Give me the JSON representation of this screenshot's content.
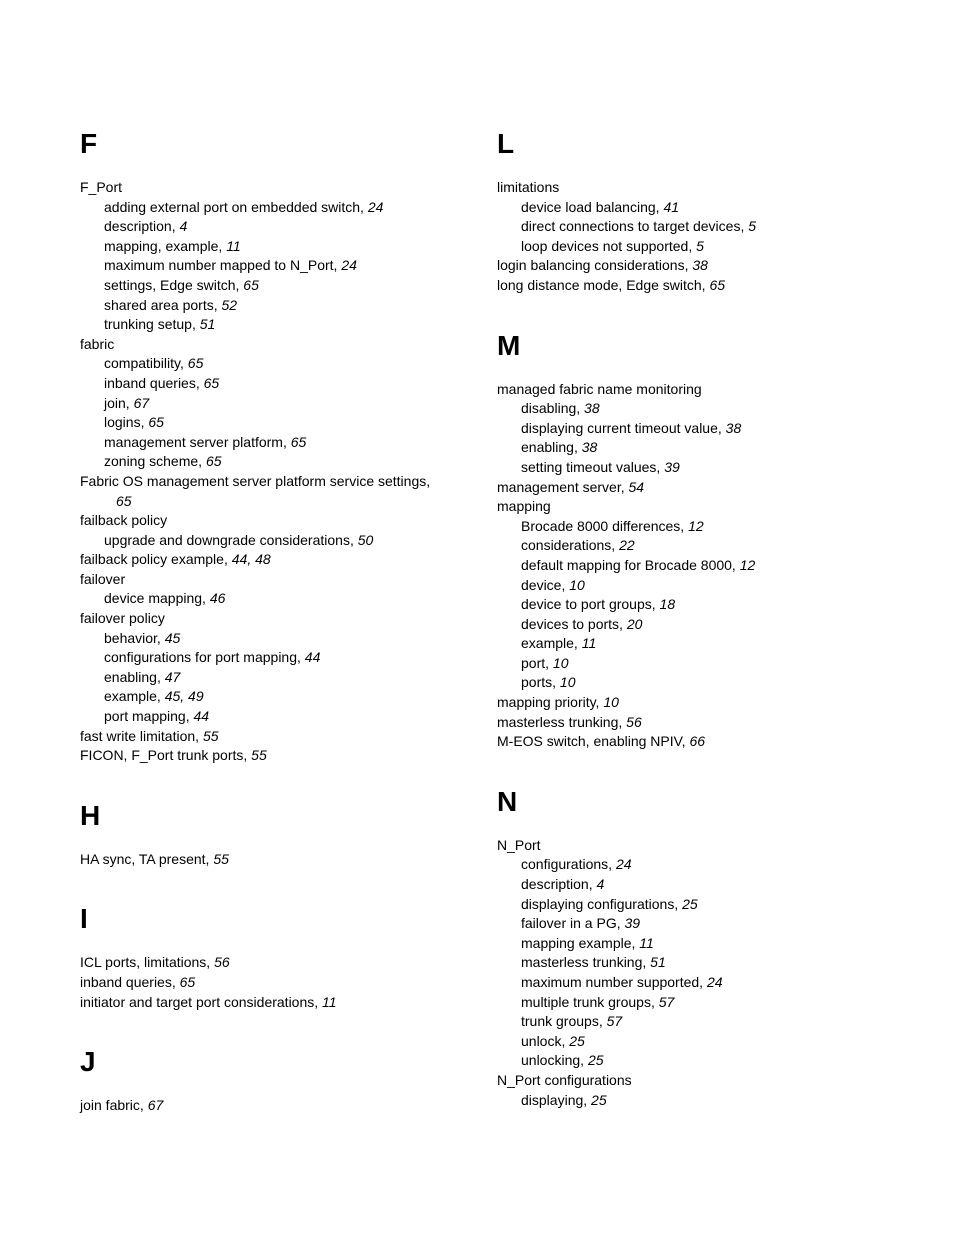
{
  "left": {
    "F": {
      "letter": "F",
      "entries": [
        {
          "text": "F_Port",
          "page": "",
          "sub": [
            {
              "text": "adding external port on embedded switch",
              "page": "24"
            },
            {
              "text": "description",
              "page": "4"
            },
            {
              "text": "mapping, example",
              "page": "11"
            },
            {
              "text": "maximum number mapped to N_Port",
              "page": "24"
            },
            {
              "text": "settings, Edge switch",
              "page": "65"
            },
            {
              "text": "shared area ports",
              "page": "52"
            },
            {
              "text": "trunking setup",
              "page": "51"
            }
          ]
        },
        {
          "text": "fabric",
          "page": "",
          "sub": [
            {
              "text": "compatibility",
              "page": "65"
            },
            {
              "text": "inband queries",
              "page": "65"
            },
            {
              "text": "join",
              "page": "67"
            },
            {
              "text": "logins",
              "page": "65"
            },
            {
              "text": "management server platform",
              "page": "65"
            },
            {
              "text": "zoning scheme",
              "page": "65"
            }
          ]
        },
        {
          "text": "Fabric OS management server platform service settings",
          "page": "65",
          "cont": true
        },
        {
          "text": "failback policy",
          "page": "",
          "sub": [
            {
              "text": "upgrade and downgrade considerations",
              "page": "50"
            }
          ]
        },
        {
          "text": "failback policy example",
          "page": "44, 48"
        },
        {
          "text": "failover",
          "page": "",
          "sub": [
            {
              "text": "device mapping",
              "page": "46"
            }
          ]
        },
        {
          "text": "failover policy",
          "page": "",
          "sub": [
            {
              "text": "behavior",
              "page": "45"
            },
            {
              "text": "configurations for port mapping",
              "page": "44"
            },
            {
              "text": "enabling",
              "page": "47"
            },
            {
              "text": "example",
              "page": "45, 49"
            },
            {
              "text": "port mapping",
              "page": "44"
            }
          ]
        },
        {
          "text": "fast write limitation",
          "page": "55"
        },
        {
          "text": "FICON, F_Port trunk ports",
          "page": "55"
        }
      ]
    },
    "H": {
      "letter": "H",
      "entries": [
        {
          "text": "HA sync, TA present",
          "page": "55"
        }
      ]
    },
    "I": {
      "letter": "I",
      "entries": [
        {
          "text": "ICL ports, limitations",
          "page": "56"
        },
        {
          "text": "inband queries",
          "page": "65"
        },
        {
          "text": "initiator and target port considerations",
          "page": "11"
        }
      ]
    },
    "J": {
      "letter": "J",
      "entries": [
        {
          "text": "join fabric",
          "page": "67"
        }
      ]
    }
  },
  "right": {
    "L": {
      "letter": "L",
      "entries": [
        {
          "text": "limitations",
          "page": "",
          "sub": [
            {
              "text": "device load balancing",
              "page": "41"
            },
            {
              "text": "direct connections to target devices",
              "page": "5"
            },
            {
              "text": "loop devices not supported",
              "page": "5"
            }
          ]
        },
        {
          "text": "login balancing considerations",
          "page": "38"
        },
        {
          "text": "long distance mode, Edge switch",
          "page": "65"
        }
      ]
    },
    "M": {
      "letter": "M",
      "entries": [
        {
          "text": "managed fabric name monitoring",
          "page": "",
          "sub": [
            {
              "text": "disabling",
              "page": "38"
            },
            {
              "text": "displaying current timeout value",
              "page": "38"
            },
            {
              "text": "enabling",
              "page": "38"
            },
            {
              "text": "setting timeout values",
              "page": "39"
            }
          ]
        },
        {
          "text": "management server",
          "page": "54"
        },
        {
          "text": "mapping",
          "page": "",
          "sub": [
            {
              "text": "Brocade 8000 differences",
              "page": "12"
            },
            {
              "text": "considerations",
              "page": "22"
            },
            {
              "text": "default mapping for Brocade 8000",
              "page": "12"
            },
            {
              "text": "device",
              "page": "10"
            },
            {
              "text": "device to port groups",
              "page": "18"
            },
            {
              "text": "devices to ports",
              "page": "20"
            },
            {
              "text": "example",
              "page": "11"
            },
            {
              "text": "port",
              "page": "10"
            },
            {
              "text": "ports",
              "page": "10"
            }
          ]
        },
        {
          "text": "mapping priority",
          "page": "10"
        },
        {
          "text": "masterless trunking",
          "page": "56"
        },
        {
          "text": "M-EOS switch, enabling NPIV",
          "page": "66"
        }
      ]
    },
    "N": {
      "letter": "N",
      "entries": [
        {
          "text": "N_Port",
          "page": "",
          "sub": [
            {
              "text": "configurations",
              "page": "24"
            },
            {
              "text": "description",
              "page": "4"
            },
            {
              "text": "displaying configurations",
              "page": "25"
            },
            {
              "text": "failover in a PG",
              "page": "39"
            },
            {
              "text": "mapping example",
              "page": "11"
            },
            {
              "text": "masterless trunking",
              "page": "51"
            },
            {
              "text": "maximum number supported",
              "page": "24"
            },
            {
              "text": "multiple trunk groups",
              "page": "57"
            },
            {
              "text": "trunk groups",
              "page": "57"
            },
            {
              "text": "unlock",
              "page": "25"
            },
            {
              "text": "unlocking",
              "page": "25"
            }
          ]
        },
        {
          "text": "N_Port configurations",
          "page": "",
          "sub": [
            {
              "text": "displaying",
              "page": "25"
            }
          ]
        }
      ]
    }
  }
}
